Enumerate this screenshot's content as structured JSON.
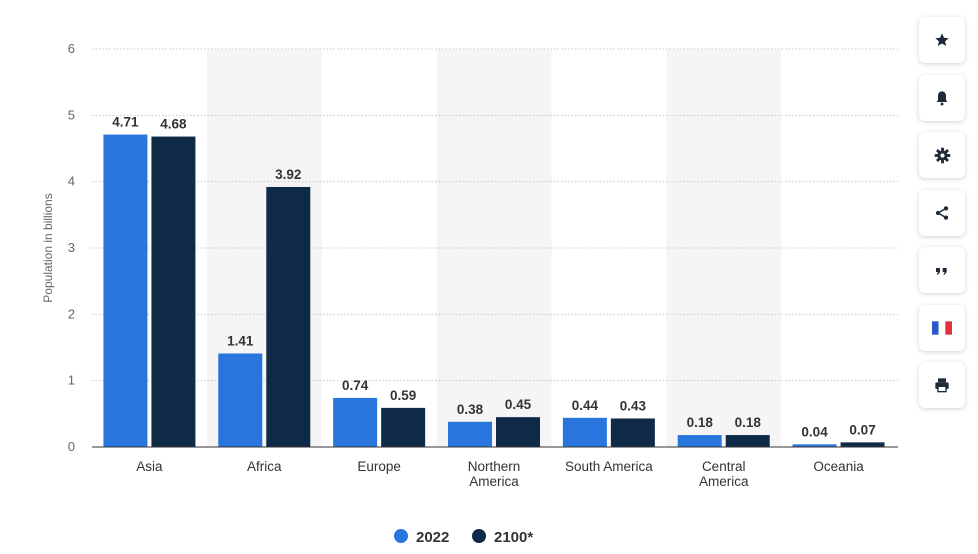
{
  "chart_data": {
    "type": "bar",
    "title": "",
    "xlabel": "",
    "ylabel": "Population in billions",
    "ylim": [
      0,
      6
    ],
    "yticks": [
      0,
      1,
      2,
      3,
      4,
      5,
      6
    ],
    "grid": true,
    "legend_position": "bottom-center",
    "categories": [
      "Asia",
      "Africa",
      "Europe",
      "Northern America",
      "South America",
      "Central America",
      "Oceania"
    ],
    "category_lines": [
      [
        "Asia"
      ],
      [
        "Africa"
      ],
      [
        "Europe"
      ],
      [
        "Northern",
        "America"
      ],
      [
        "South America"
      ],
      [
        "Central",
        "America"
      ],
      [
        "Oceania"
      ]
    ],
    "series": [
      {
        "name": "2022",
        "color": "#2876dd",
        "values": [
          4.71,
          1.41,
          0.74,
          0.38,
          0.44,
          0.18,
          0.04
        ],
        "labels": [
          "4.71",
          "1.41",
          "0.74",
          "0.38",
          "0.44",
          "0.18",
          "0.04"
        ]
      },
      {
        "name": "2100*",
        "color": "#0f2a47",
        "values": [
          4.68,
          3.92,
          0.59,
          0.45,
          0.43,
          0.18,
          0.07
        ],
        "labels": [
          "4.68",
          "3.92",
          "0.59",
          "0.45",
          "0.43",
          "0.18",
          "0.07"
        ]
      }
    ],
    "band_color": "#f5f5f5"
  },
  "toolbar": {
    "items": [
      {
        "name": "favorite",
        "icon": "star-icon"
      },
      {
        "name": "notification",
        "icon": "bell-icon"
      },
      {
        "name": "settings",
        "icon": "gear-icon"
      },
      {
        "name": "share",
        "icon": "share-icon"
      },
      {
        "name": "cite",
        "icon": "quote-icon"
      },
      {
        "name": "language",
        "icon": "french-flag-icon"
      },
      {
        "name": "print",
        "icon": "printer-icon"
      }
    ]
  }
}
